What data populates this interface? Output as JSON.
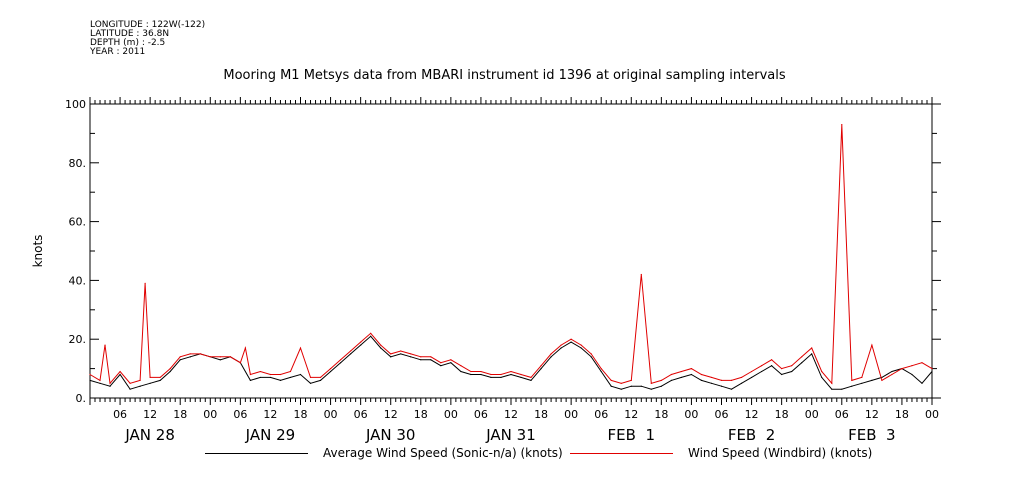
{
  "meta": {
    "longitude": "LONGITUDE : 122W(-122)",
    "latitude": "LATITUDE : 36.8N",
    "depth": "DEPTH (m) : -2.5",
    "year": "YEAR : 2011"
  },
  "chart_data": {
    "type": "line",
    "title": "Mooring M1 Metsys data from MBARI instrument id 1396 at original sampling intervals",
    "ylabel": "knots",
    "xlabel": "",
    "ylim": [
      0,
      100
    ],
    "xlim_hours": [
      0,
      168
    ],
    "yticks": [
      "0.",
      "20.",
      "40.",
      "60.",
      "80.",
      "100"
    ],
    "hour_ticks": [
      "06",
      "12",
      "18",
      "00",
      "06",
      "12",
      "18",
      "00",
      "06",
      "12",
      "18",
      "00",
      "06",
      "12",
      "18",
      "00",
      "06",
      "12",
      "18",
      "00",
      "06",
      "12",
      "18",
      "00",
      "06",
      "12",
      "18",
      "00"
    ],
    "day_labels": [
      "JAN 28",
      "JAN 29",
      "JAN 30",
      "JAN 31",
      "FEB  1",
      "FEB  2",
      "FEB  3"
    ],
    "grid": false,
    "legend_position": "bottom",
    "colors": {
      "series_a": "#000000",
      "series_b": "#e00000"
    },
    "series": [
      {
        "name": "Average Wind Speed (Sonic-n/a) (knots)",
        "x": [
          0,
          2,
          4,
          6,
          8,
          10,
          12,
          14,
          16,
          18,
          20,
          22,
          24,
          26,
          28,
          30,
          32,
          34,
          36,
          38,
          40,
          42,
          44,
          46,
          48,
          50,
          52,
          54,
          56,
          58,
          60,
          62,
          64,
          66,
          68,
          70,
          72,
          74,
          76,
          78,
          80,
          82,
          84,
          86,
          88,
          90,
          92,
          94,
          96,
          98,
          100,
          102,
          104,
          106,
          108,
          110,
          112,
          114,
          116,
          118,
          120,
          122,
          124,
          126,
          128,
          130,
          132,
          134,
          136,
          138,
          140,
          142,
          144,
          146,
          148,
          150,
          152,
          154,
          156,
          158,
          160,
          162,
          164,
          166,
          168
        ],
        "values": [
          6,
          5,
          4,
          8,
          3,
          4,
          5,
          6,
          9,
          13,
          14,
          15,
          14,
          13,
          14,
          12,
          6,
          7,
          7,
          6,
          7,
          8,
          5,
          6,
          9,
          12,
          15,
          18,
          21,
          17,
          14,
          15,
          14,
          13,
          13,
          11,
          12,
          9,
          8,
          8,
          7,
          7,
          8,
          7,
          6,
          10,
          14,
          17,
          19,
          17,
          14,
          9,
          4,
          3,
          4,
          4,
          3,
          4,
          6,
          7,
          8,
          6,
          5,
          4,
          3,
          5,
          7,
          9,
          11,
          8,
          9,
          12,
          15,
          7,
          3,
          3,
          4,
          5,
          6,
          7,
          9,
          10,
          8,
          5,
          9
        ]
      },
      {
        "name": "Wind Speed (Windbird) (knots)",
        "x": [
          0,
          2,
          3,
          4,
          6,
          8,
          10,
          11,
          12,
          14,
          16,
          18,
          20,
          22,
          24,
          26,
          28,
          30,
          31,
          32,
          34,
          36,
          38,
          40,
          42,
          44,
          46,
          48,
          50,
          52,
          54,
          56,
          58,
          60,
          62,
          64,
          66,
          68,
          70,
          72,
          74,
          76,
          78,
          80,
          82,
          84,
          86,
          88,
          90,
          92,
          94,
          96,
          98,
          100,
          102,
          104,
          106,
          108,
          110,
          112,
          114,
          116,
          118,
          120,
          122,
          124,
          126,
          128,
          130,
          132,
          134,
          136,
          138,
          140,
          142,
          144,
          146,
          148,
          150,
          152,
          154,
          156,
          158,
          160,
          162,
          164,
          166,
          168
        ],
        "values": [
          8,
          6,
          18,
          5,
          9,
          5,
          6,
          39,
          7,
          7,
          10,
          14,
          15,
          15,
          14,
          14,
          14,
          12,
          17,
          8,
          9,
          8,
          8,
          9,
          17,
          7,
          7,
          10,
          13,
          16,
          19,
          22,
          18,
          15,
          16,
          15,
          14,
          14,
          12,
          13,
          11,
          9,
          9,
          8,
          8,
          9,
          8,
          7,
          11,
          15,
          18,
          20,
          18,
          15,
          10,
          6,
          5,
          6,
          42,
          5,
          6,
          8,
          9,
          10,
          8,
          7,
          6,
          6,
          7,
          9,
          11,
          13,
          10,
          11,
          14,
          17,
          9,
          5,
          93,
          6,
          7,
          18,
          6,
          8,
          10,
          11,
          12,
          10
        ]
      }
    ]
  }
}
